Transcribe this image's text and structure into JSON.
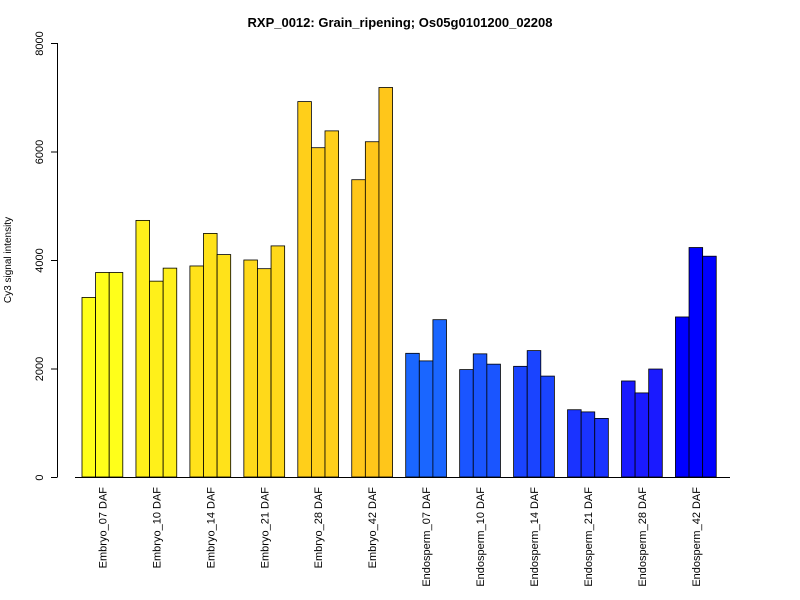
{
  "chart_data": {
    "type": "bar",
    "title": "RXP_0012: Grain_ripening; Os05g0101200_02208",
    "xlabel": "",
    "ylabel": "Cy3 signal intensity",
    "ylim": [
      0,
      8000
    ],
    "yticks": [
      0,
      2000,
      4000,
      6000,
      8000
    ],
    "grid": false,
    "categories": [
      "Embryo_07 DAF",
      "Embryo_10 DAF",
      "Embryo_14 DAF",
      "Embryo_21 DAF",
      "Embryo_28 DAF",
      "Embryo_42 DAF",
      "Endosperm_07 DAF",
      "Endosperm_10 DAF",
      "Endosperm_14 DAF",
      "Endosperm_21 DAF",
      "Endosperm_28 DAF",
      "Endosperm_42 DAF"
    ],
    "colors": [
      "#ffff1a",
      "#fff01a",
      "#ffe21a",
      "#ffd91a",
      "#ffcf1a",
      "#ffc61a",
      "#1a66ff",
      "#1a55ff",
      "#1a44ff",
      "#1a33ff",
      "#1a1aff",
      "#0000ff"
    ],
    "values": [
      [
        3310,
        3770,
        3770
      ],
      [
        4730,
        3610,
        3850
      ],
      [
        3890,
        4490,
        4100
      ],
      [
        4000,
        3840,
        4260
      ],
      [
        6920,
        6070,
        6380
      ],
      [
        5480,
        6180,
        7180
      ],
      [
        2280,
        2140,
        2900
      ],
      [
        1980,
        2270,
        2080
      ],
      [
        2040,
        2330,
        1860
      ],
      [
        1240,
        1200,
        1080
      ],
      [
        1770,
        1550,
        1990
      ],
      [
        2950,
        4230,
        4070
      ]
    ]
  }
}
